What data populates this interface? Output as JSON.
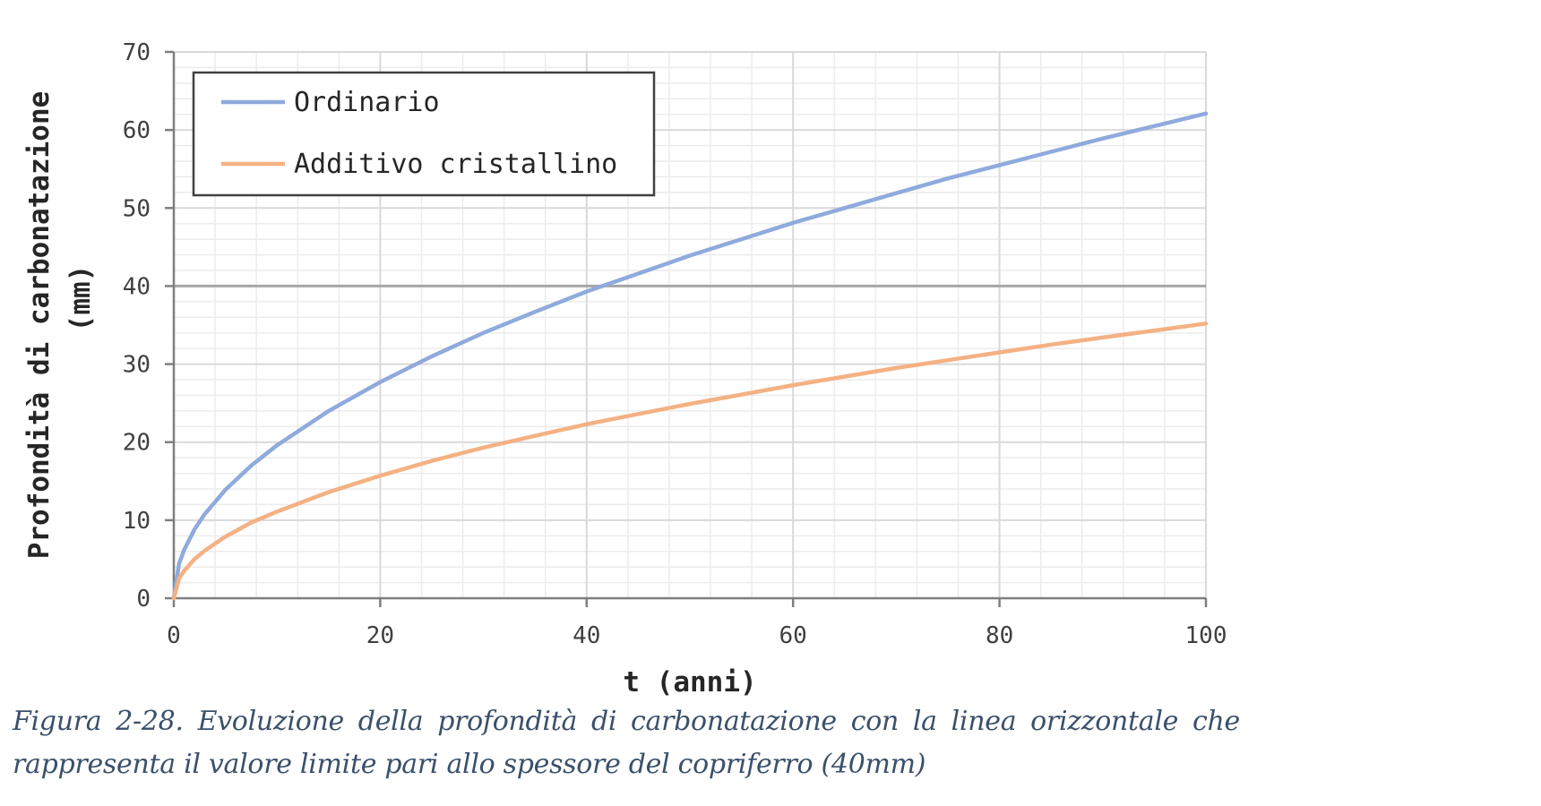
{
  "chart_data": {
    "type": "line",
    "xlabel": "t (anni)",
    "ylabel_line1": "Profondità di carbonatazione",
    "ylabel_line2": "(mm)",
    "xlim": [
      0,
      100
    ],
    "ylim": [
      0,
      70
    ],
    "xticks": [
      0,
      20,
      40,
      60,
      80,
      100
    ],
    "yticks": [
      0,
      10,
      20,
      30,
      40,
      50,
      60,
      70
    ],
    "grid": true,
    "legend_position": "top-left",
    "reference_line": {
      "y": 40,
      "color": "#a6a6a6"
    },
    "series": [
      {
        "name": "Ordinario",
        "color": "#8faadc",
        "x": [
          0,
          0.5,
          1,
          2,
          3,
          5,
          7.5,
          10,
          15,
          20,
          25,
          30,
          35,
          40,
          45,
          50,
          55,
          60,
          65,
          70,
          75,
          80,
          85,
          90,
          95,
          100
        ],
        "y": [
          0,
          4.4,
          6.2,
          8.8,
          10.8,
          13.9,
          17.0,
          19.6,
          24.0,
          27.7,
          31.0,
          34.0,
          36.7,
          39.3,
          41.6,
          43.9,
          46.0,
          48.1,
          50.0,
          51.9,
          53.8,
          55.5,
          57.2,
          58.9,
          60.5,
          62.1
        ]
      },
      {
        "name": "Additivo cristallino",
        "color": "#f4b183",
        "x": [
          0,
          0.5,
          1,
          2,
          3,
          5,
          7.5,
          10,
          15,
          20,
          25,
          30,
          35,
          40,
          45,
          50,
          55,
          60,
          65,
          70,
          75,
          80,
          85,
          90,
          95,
          100
        ],
        "y": [
          0,
          2.5,
          3.5,
          5.0,
          6.1,
          7.9,
          9.7,
          11.1,
          13.6,
          15.7,
          17.6,
          19.3,
          20.8,
          22.3,
          23.6,
          24.9,
          26.1,
          27.3,
          28.4,
          29.5,
          30.5,
          31.5,
          32.5,
          33.4,
          34.3,
          35.2
        ]
      }
    ]
  },
  "caption": "Figura 2-28. Evoluzione della profondità di carbonatazione con la linea orizzontale che rappresenta il valore limite pari allo spessore del copriferro (40mm)"
}
